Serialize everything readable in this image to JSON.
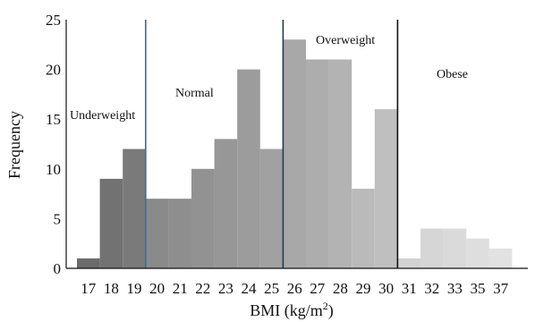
{
  "chart_data": {
    "type": "bar",
    "xlabel": "BMI (kg/m",
    "xlabel_superscript": "2",
    "xlabel_close": ")",
    "ylabel": "Frequency",
    "ylim": [
      0,
      25
    ],
    "yticks": [
      "0",
      "5",
      "10",
      "15",
      "20",
      "25"
    ],
    "categories": [
      "17",
      "18",
      "19",
      "20",
      "21",
      "22",
      "23",
      "24",
      "25",
      "26",
      "27",
      "28",
      "29",
      "30",
      "31",
      "32",
      "33",
      "35",
      "37"
    ],
    "values": [
      1,
      9,
      12,
      7,
      7,
      10,
      13,
      20,
      12,
      23,
      21,
      21,
      8,
      16,
      1,
      4,
      4,
      3,
      2
    ],
    "colors": [
      "#6b6b6b",
      "#727272",
      "#7a7a7a",
      "#8a8a8a",
      "#8e8e8e",
      "#929292",
      "#979797",
      "#9c9c9c",
      "#a1a1a1",
      "#a8a8a8",
      "#adadad",
      "#b3b3b3",
      "#bababa",
      "#bfbfbf",
      "#d2d2d2",
      "#d6d6d6",
      "#dadada",
      "#dedede",
      "#e2e2e2"
    ],
    "regions": [
      {
        "name": "Underweight"
      },
      {
        "name": "Normal"
      },
      {
        "name": "Overweight"
      },
      {
        "name": "Obese"
      }
    ],
    "dividers_after_category": [
      "19",
      "25",
      "30"
    ],
    "divider_colors": [
      "#2f6fa7",
      "#1f3a5a",
      "#111111"
    ]
  }
}
